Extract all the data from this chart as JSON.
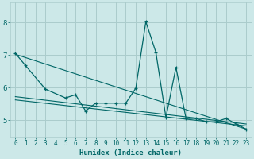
{
  "xlabel": "Humidex (Indice chaleur)",
  "background_color": "#cce8e8",
  "grid_color": "#aacccc",
  "line_color": "#006666",
  "xlim": [
    -0.5,
    23.5
  ],
  "ylim": [
    4.5,
    8.6
  ],
  "yticks": [
    5,
    6,
    7,
    8
  ],
  "xticks": [
    0,
    1,
    2,
    3,
    4,
    5,
    6,
    7,
    8,
    9,
    10,
    11,
    12,
    13,
    14,
    15,
    16,
    17,
    18,
    19,
    20,
    21,
    22,
    23
  ],
  "main_x": [
    0,
    1,
    3,
    5,
    6,
    7,
    8,
    9,
    10,
    11,
    12,
    13,
    14,
    15,
    16,
    17,
    18,
    19,
    20,
    21,
    22,
    23
  ],
  "main_y": [
    7.05,
    6.68,
    5.95,
    5.68,
    5.78,
    5.28,
    5.52,
    5.52,
    5.52,
    5.52,
    5.98,
    8.02,
    7.08,
    5.08,
    6.62,
    5.05,
    5.05,
    4.95,
    4.95,
    5.05,
    4.88,
    4.72
  ],
  "line1_x": [
    0,
    23
  ],
  "line1_y": [
    7.02,
    4.72
  ],
  "line2_x": [
    0,
    23
  ],
  "line2_y": [
    5.72,
    4.88
  ],
  "line3_x": [
    0,
    23
  ],
  "line3_y": [
    5.62,
    4.82
  ]
}
